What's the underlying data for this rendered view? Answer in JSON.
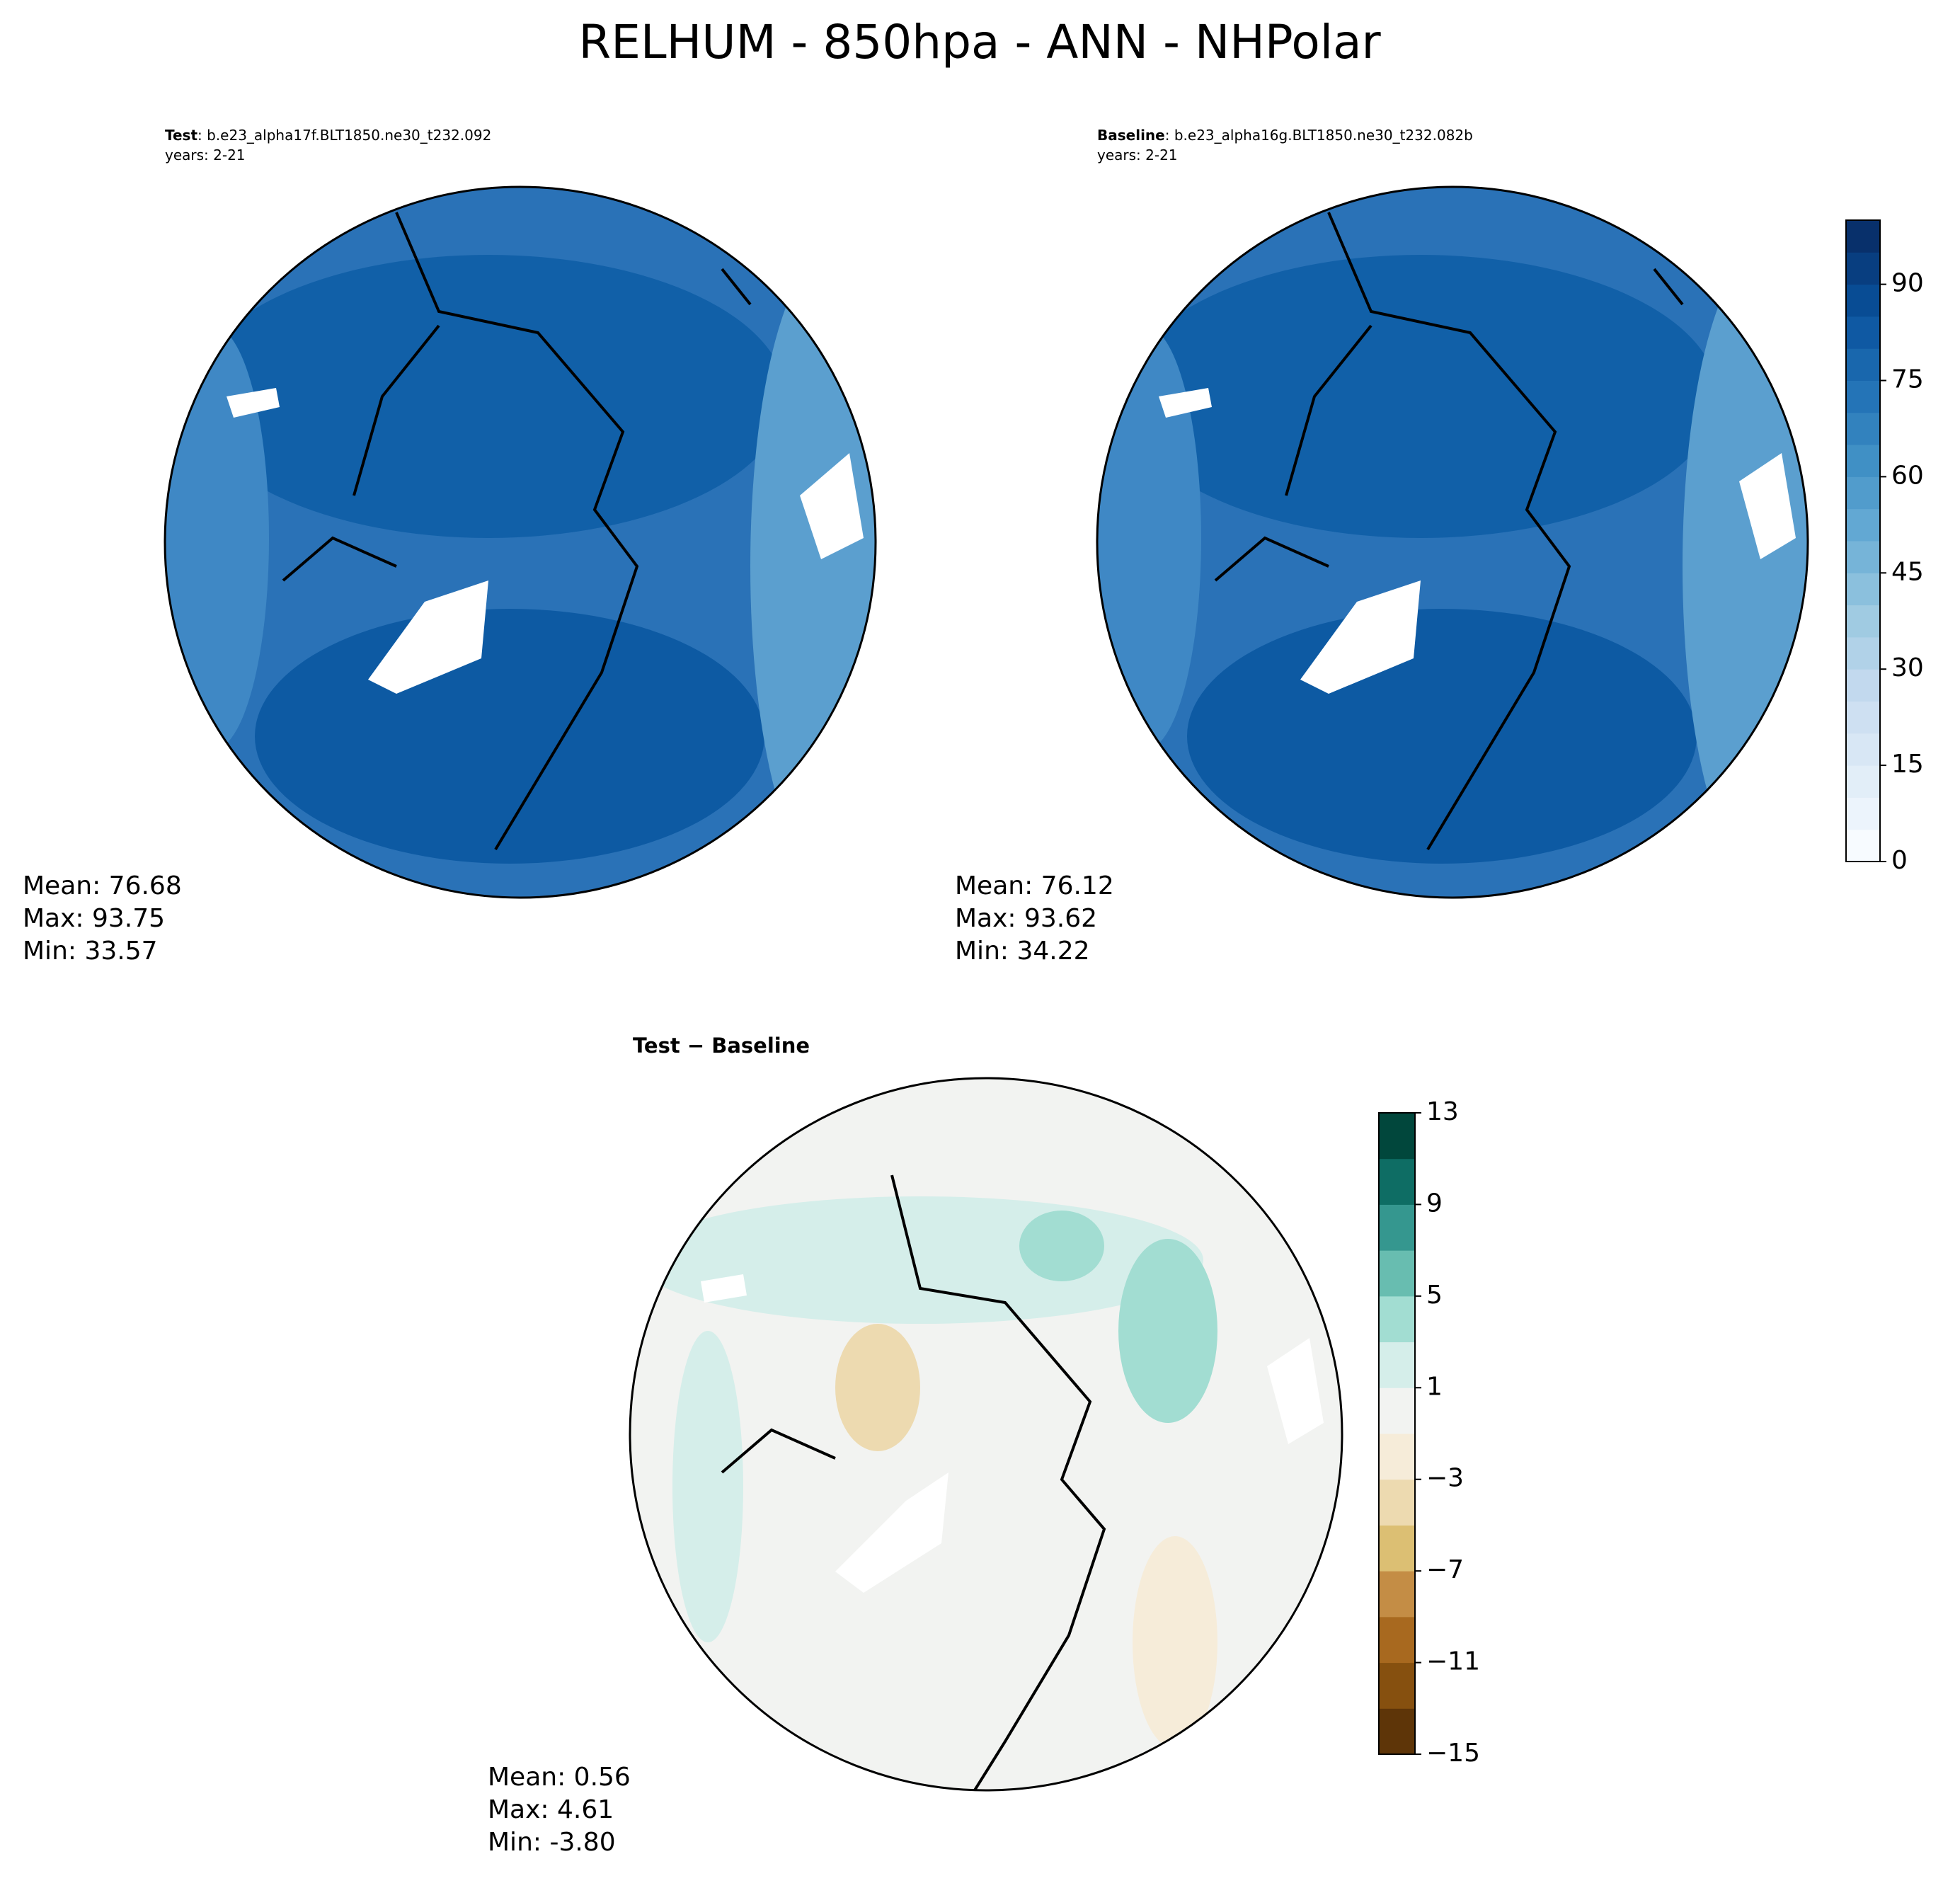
{
  "figure": {
    "title": "RELHUM - 850hpa - ANN - NHPolar",
    "panels": [
      {
        "label_bold": "Test",
        "label_rest": ": b.e23_alpha17f.BLT1850.ne30_t232.092",
        "years": "years: 2-21",
        "stats": [
          "Mean: 76.68",
          "Max: 93.75",
          "Min: 33.57"
        ]
      },
      {
        "label_bold": "Baseline",
        "label_rest": ": b.e23_alpha16g.BLT1850.ne30_t232.082b",
        "years": "years: 2-21",
        "stats": [
          "Mean: 76.12",
          "Max: 93.62",
          "Min: 34.22"
        ]
      },
      {
        "label_bold": "Test − Baseline",
        "stats": [
          "Mean:  0.56",
          "Max:  4.61",
          "Min: -3.80"
        ]
      }
    ],
    "colorbars": [
      {
        "ylim": [
          0,
          100
        ],
        "yticks": [
          0,
          15,
          30,
          45,
          60,
          75,
          90
        ],
        "bands": 20,
        "cmap": [
          "#f7fbff",
          "#deebf7",
          "#c6dbef",
          "#9ecae1",
          "#6baed6",
          "#4292c6",
          "#2171b5",
          "#08519c",
          "#08306b"
        ]
      },
      {
        "ylim": [
          -15,
          13
        ],
        "yticks": [
          {
            "value": -15,
            "label": "−15"
          },
          {
            "value": -11,
            "label": "−11"
          },
          {
            "value": -7,
            "label": "−7"
          },
          {
            "value": -3,
            "label": "−3"
          },
          1,
          5,
          9,
          13
        ],
        "bands": 14,
        "colors": [
          "#5e3508",
          "#86500f",
          "#a8691f",
          "#c48d45",
          "#dcbf73",
          "#eddab0",
          "#f6ecd9",
          "#f2f3f1",
          "#d5eeea",
          "#a2ddd2",
          "#68bdb0",
          "#35978f",
          "#0e6d64",
          "#01473c"
        ]
      }
    ]
  }
}
